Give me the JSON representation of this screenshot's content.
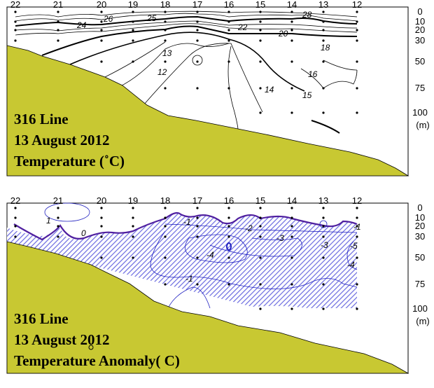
{
  "chart_data": [
    {
      "type": "contour",
      "title_lines": [
        "316 Line",
        "13 August 2012",
        "Temperature (˚C)"
      ],
      "stations": [
        "22",
        "21",
        "20",
        "19",
        "18",
        "17",
        "16",
        "15",
        "14",
        "13",
        "12"
      ],
      "depth_ticks": [
        "0",
        "10",
        "20",
        "30",
        "50",
        "75",
        "100"
      ],
      "depth_unit": "(m)",
      "ylim": [
        0,
        100
      ],
      "contour_labels": [
        "24",
        "26",
        "25",
        "22",
        "20",
        "28",
        "18",
        "13",
        "12",
        "16",
        "14",
        "15"
      ],
      "colors": {
        "land": "#c8c832",
        "contour": "#000000"
      }
    },
    {
      "type": "contour",
      "title_lines": [
        "316 Line",
        "13 August 2012",
        "Temperature Anomaly( C)"
      ],
      "stations": [
        "22",
        "21",
        "20",
        "19",
        "18",
        "17",
        "16",
        "15",
        "14",
        "13",
        "12"
      ],
      "depth_ticks": [
        "0",
        "10",
        "20",
        "30",
        "50",
        "75",
        "100"
      ],
      "depth_unit": "(m)",
      "ylim": [
        0,
        100
      ],
      "contour_labels": [
        "1",
        "0",
        "-1",
        "-2",
        "-3",
        "-4",
        "-1",
        "-3",
        "-5",
        "-4",
        "-1"
      ],
      "colors": {
        "land": "#c8c832",
        "contour": "#2020c0",
        "zero_line": "#5020a0",
        "hatch": "#6a6ae0"
      }
    }
  ]
}
